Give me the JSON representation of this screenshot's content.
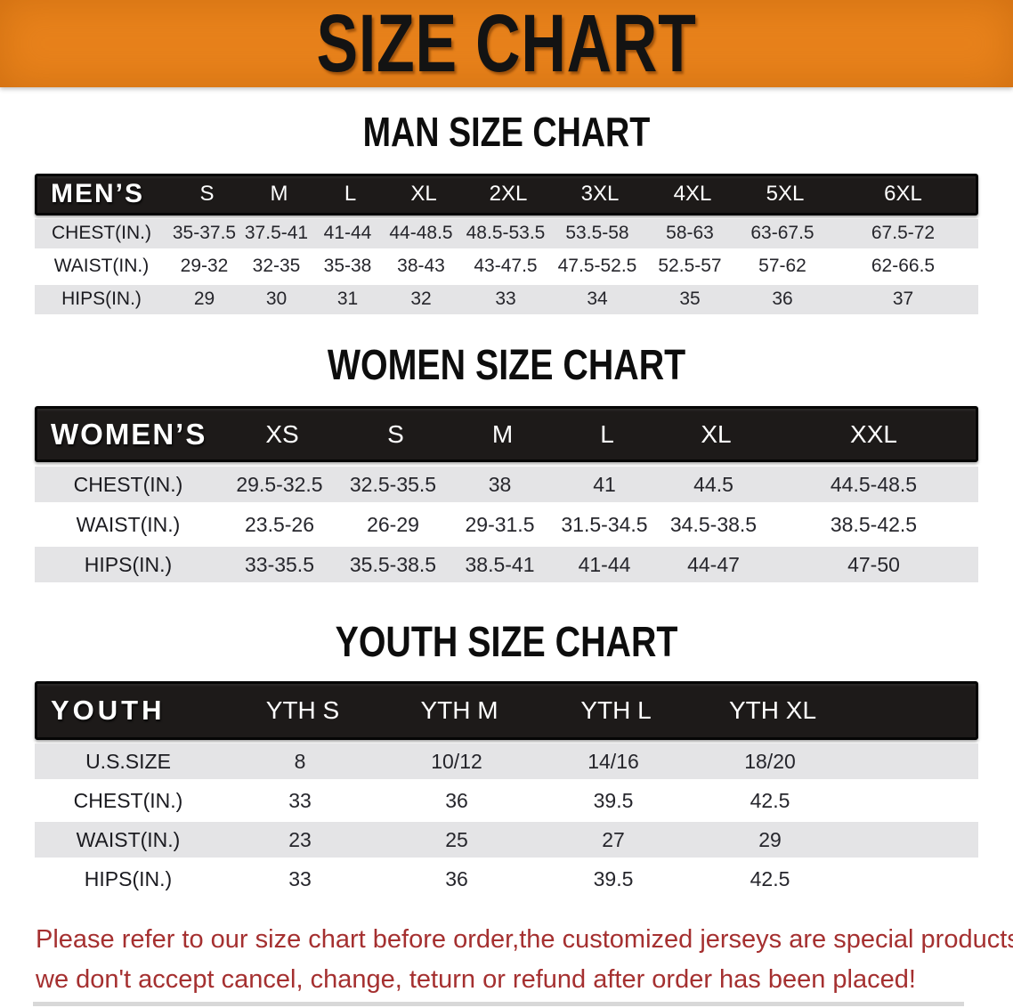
{
  "banner": {
    "title": "SIZE CHART",
    "bg_color": "#E8821B",
    "text_color": "#131313"
  },
  "sections": [
    {
      "title": "MAN SIZE CHART",
      "label": "MEN’S",
      "columns": [
        "S",
        "M",
        "L",
        "XL",
        "2XL",
        "3XL",
        "4XL",
        "5XL",
        "6XL"
      ],
      "rows": [
        {
          "label": "CHEST(IN.)",
          "values": [
            "35-37.5",
            "37.5-41",
            "41-44",
            "44-48.5",
            "48.5-53.5",
            "53.5-58",
            "58-63",
            "63-67.5",
            "67.5-72"
          ]
        },
        {
          "label": "WAIST(IN.)",
          "values": [
            "29-32",
            "32-35",
            "35-38",
            "38-43",
            "43-47.5",
            "47.5-52.5",
            "52.5-57",
            "57-62",
            "62-66.5"
          ]
        },
        {
          "label": "HIPS(IN.)",
          "values": [
            "29",
            "30",
            "31",
            "32",
            "33",
            "34",
            "35",
            "36",
            "37"
          ]
        }
      ]
    },
    {
      "title": "WOMEN SIZE CHART",
      "label": "WOMEN’S",
      "columns": [
        "XS",
        "S",
        "M",
        "L",
        "XL",
        "XXL"
      ],
      "rows": [
        {
          "label": "CHEST(IN.)",
          "values": [
            "29.5-32.5",
            "32.5-35.5",
            "38",
            "41",
            "44.5",
            "44.5-48.5"
          ]
        },
        {
          "label": "WAIST(IN.)",
          "values": [
            "23.5-26",
            "26-29",
            "29-31.5",
            "31.5-34.5",
            "34.5-38.5",
            "38.5-42.5"
          ]
        },
        {
          "label": "HIPS(IN.)",
          "values": [
            "33-35.5",
            "35.5-38.5",
            "38.5-41",
            "41-44",
            "44-47",
            "47-50"
          ]
        }
      ]
    },
    {
      "title": "YOUTH SIZE CHART",
      "label": "YOUTH",
      "columns": [
        "YTH S",
        "YTH M",
        "YTH L",
        "YTH XL"
      ],
      "rows": [
        {
          "label": "U.S.SIZE",
          "values": [
            "8",
            "10/12",
            "14/16",
            "18/20"
          ]
        },
        {
          "label": "CHEST(IN.)",
          "values": [
            "33",
            "36",
            "39.5",
            "42.5"
          ]
        },
        {
          "label": "WAIST(IN.)",
          "values": [
            "23",
            "25",
            "27",
            "29"
          ]
        },
        {
          "label": "HIPS(IN.)",
          "values": [
            "33",
            "36",
            "39.5",
            "42.5"
          ]
        }
      ]
    }
  ],
  "disclaimer": {
    "line1": "Please refer to our size chart before order,the customized jerseys are special products,",
    "line2": "we don't accept cancel, change, teturn or refund after order has been placed!",
    "color": "#A53030"
  },
  "row_stripe_color": "#E4E4E6",
  "header_band_color": "#1d1a19"
}
